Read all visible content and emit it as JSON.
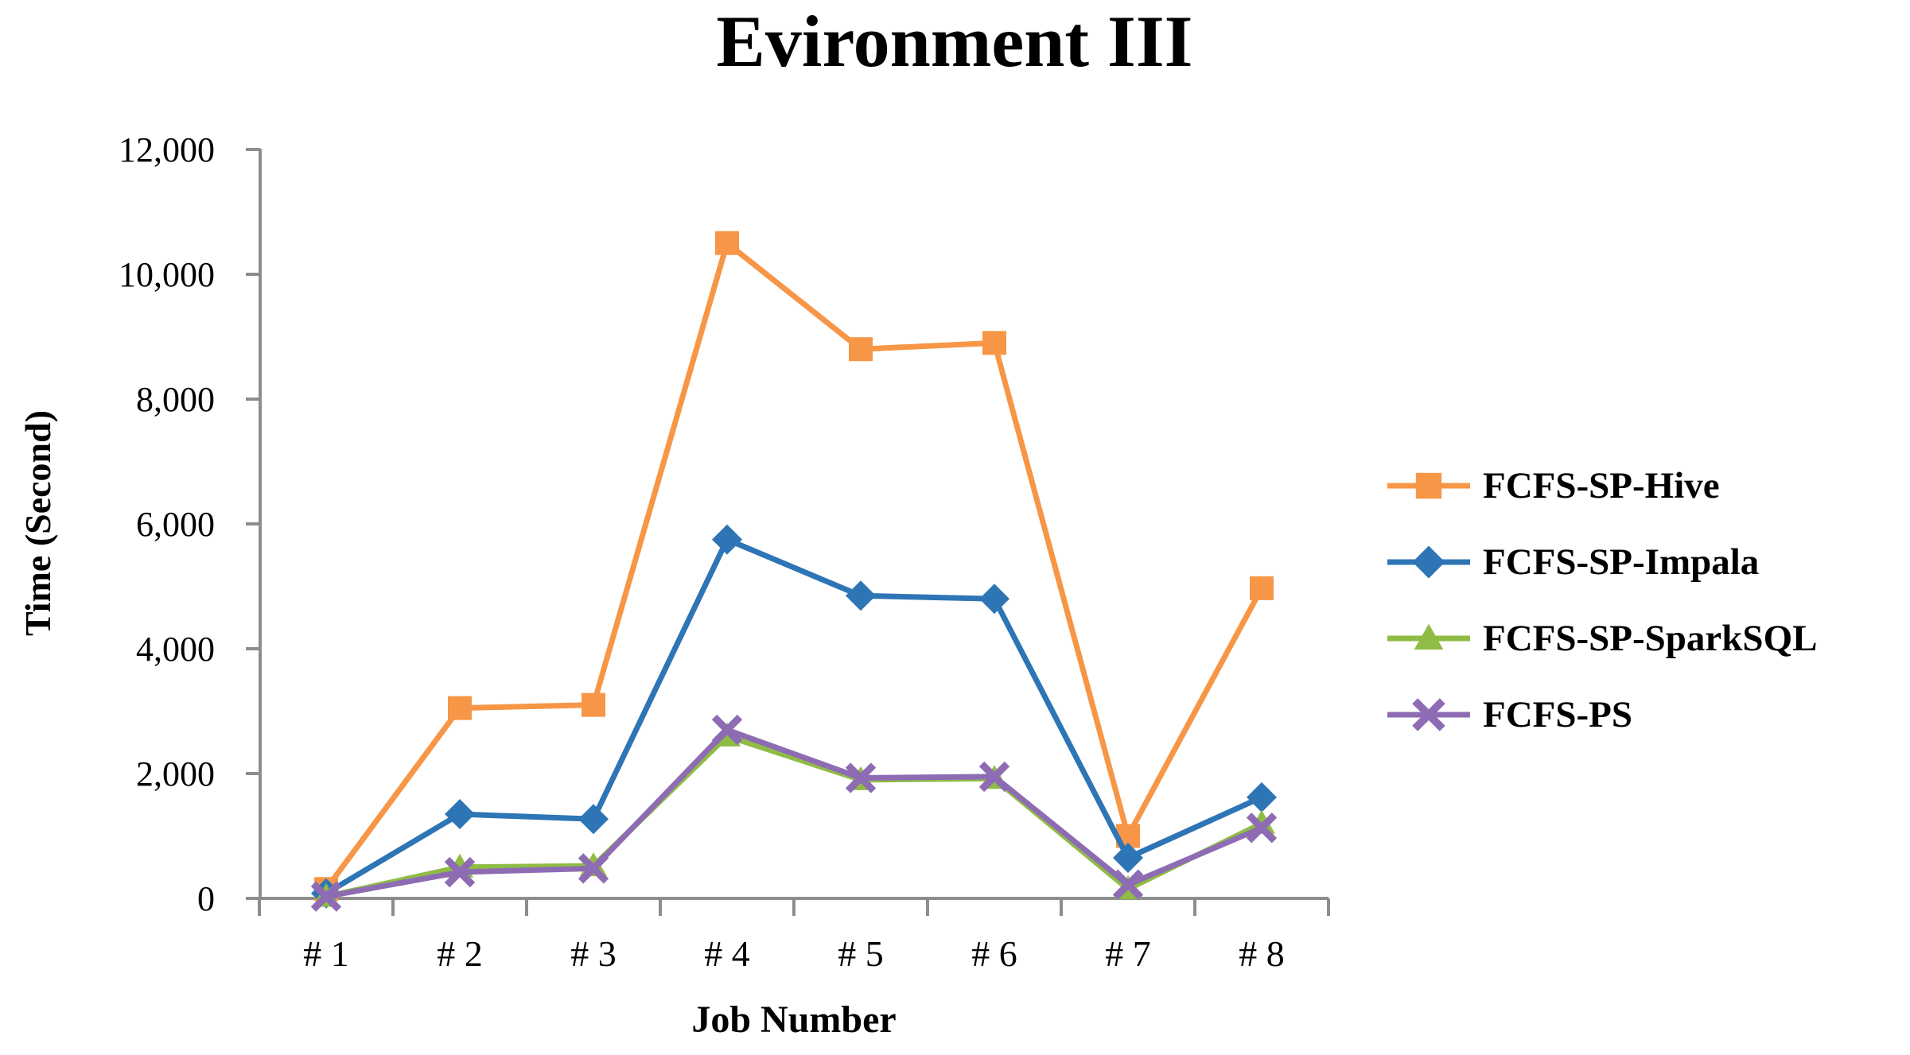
{
  "chart_data": {
    "type": "line",
    "title": "Evironment III",
    "xlabel": "Job Number",
    "ylabel": "Time (Second)",
    "ylim": [
      0,
      12000
    ],
    "grid": false,
    "legend_position": "right",
    "categories": [
      "# 1",
      "# 2",
      "# 3",
      "# 4",
      "# 5",
      "# 6",
      "# 7",
      "# 8"
    ],
    "y_tick_labels": [
      "0",
      "2,000",
      "4,000",
      "6,000",
      "8,000",
      "10,000",
      "12,000"
    ],
    "y_tick_values": [
      0,
      2000,
      4000,
      6000,
      8000,
      10000,
      12000
    ],
    "series": [
      {
        "name": "FCFS-SP-Hive",
        "color": "#F79646",
        "marker": "square",
        "values": [
          150,
          3050,
          3100,
          10500,
          8800,
          8900,
          1000,
          4970
        ]
      },
      {
        "name": "FCFS-SP-Impala",
        "color": "#2E75B6",
        "marker": "diamond",
        "values": [
          80,
          1350,
          1270,
          5750,
          4850,
          4800,
          650,
          1620
        ]
      },
      {
        "name": "FCFS-SP-SparkSQL",
        "color": "#8FBC44",
        "marker": "triangle",
        "values": [
          30,
          500,
          520,
          2600,
          1900,
          1920,
          150,
          1200
        ]
      },
      {
        "name": "FCFS-PS",
        "color": "#8E6CB4",
        "marker": "x",
        "values": [
          30,
          420,
          480,
          2700,
          1930,
          1950,
          220,
          1130
        ]
      }
    ]
  },
  "colors": {
    "axis": "#8D8D8D",
    "text": "#000000",
    "background": "#FFFFFF"
  }
}
